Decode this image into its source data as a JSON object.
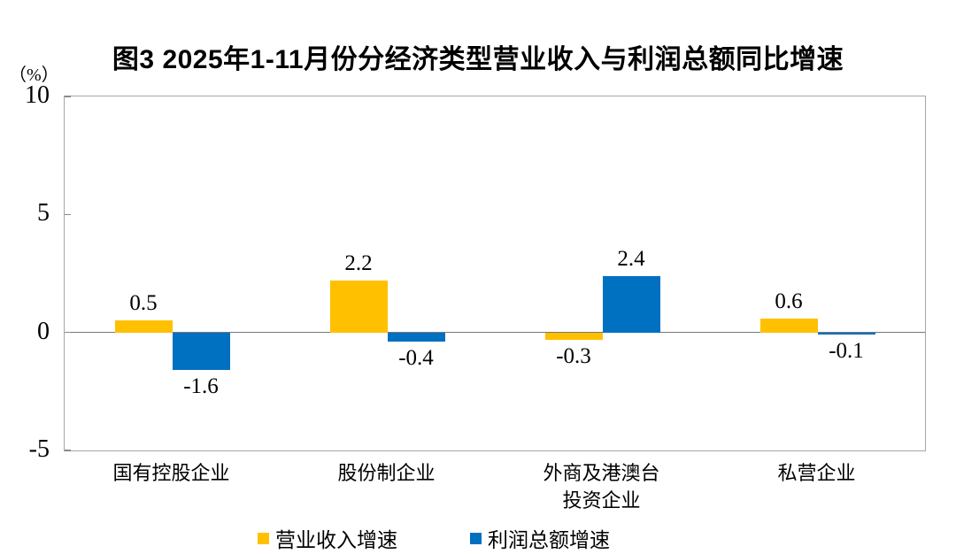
{
  "title": "图3  2025年1-11月份分经济类型营业收入与利润总额同比增速",
  "unit_label": "（%）",
  "colors": {
    "revenue": "#FFC000",
    "profit": "#0070C0",
    "axis": "#a6a6a6",
    "zero_line": "#767676"
  },
  "chart_data": {
    "type": "bar",
    "title": "图3  2025年1-11月份分经济类型营业收入与利润总额同比增速",
    "ylabel": "（%）",
    "ylim": [
      -5,
      10
    ],
    "yticks": [
      10,
      5,
      0,
      -5
    ],
    "grid": false,
    "data_labels": true,
    "legend_position": "bottom",
    "categories": [
      "国有控股企业",
      "股份制企业",
      "外商及港澳台\n投资企业",
      "私营企业"
    ],
    "series": [
      {
        "key": "revenue",
        "name": "营业收入增速",
        "color": "#FFC000",
        "values": [
          0.5,
          2.2,
          -0.3,
          0.6
        ]
      },
      {
        "key": "profit",
        "name": "利润总额增速",
        "color": "#0070C0",
        "values": [
          -1.6,
          -0.4,
          2.4,
          -0.1
        ]
      }
    ]
  },
  "legend": {
    "items": [
      {
        "key": "revenue",
        "label": "营业收入增速",
        "color": "#FFC000"
      },
      {
        "key": "profit",
        "label": "利润总额增速",
        "color": "#0070C0"
      }
    ]
  }
}
